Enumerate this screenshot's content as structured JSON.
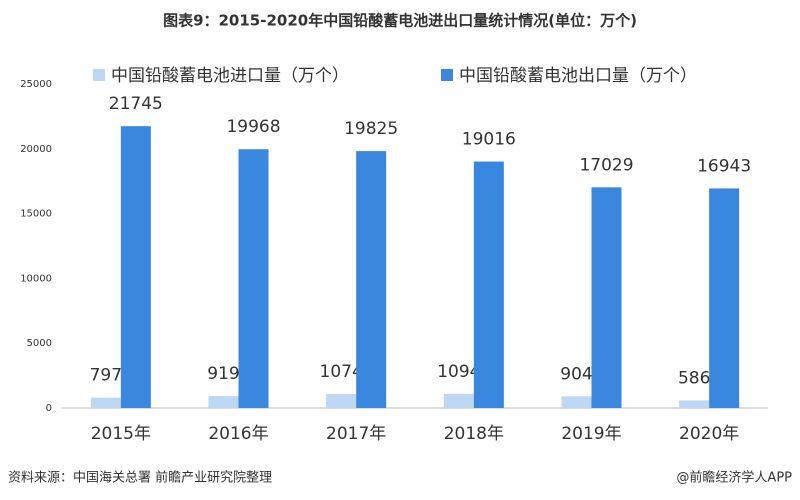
{
  "chart_data": {
    "type": "bar",
    "title": "图表9：2015-2020年中国铅酸蓄电池进出口量统计情况(单位：万个)",
    "categories": [
      "2015年",
      "2016年",
      "2017年",
      "2018年",
      "2019年",
      "2020年"
    ],
    "series": [
      {
        "name": "中国铅酸蓄电池进口量（万个）",
        "color": "#bdd7f5",
        "values": [
          797,
          919,
          1074,
          1094,
          904,
          586
        ]
      },
      {
        "name": "中国铅酸蓄电池出口量（万个）",
        "color": "#3a87e0",
        "values": [
          21745,
          19968,
          19825,
          19016,
          17029,
          16943
        ]
      }
    ],
    "ylim": [
      0,
      25000
    ],
    "yticks": [
      0,
      5000,
      10000,
      15000,
      20000,
      25000
    ],
    "grid": false,
    "source": "资料来源：中国海关总署 前瞻产业研究院整理",
    "credit": "@前瞻经济学人APP"
  }
}
